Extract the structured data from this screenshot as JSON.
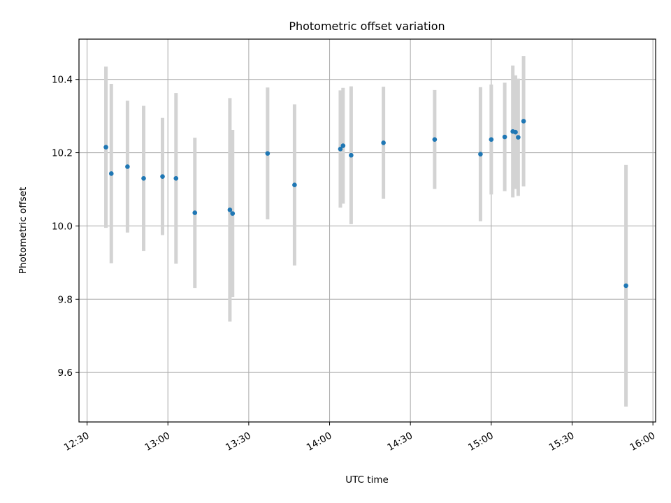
{
  "chart_data": {
    "type": "scatter",
    "title": "Photometric offset variation",
    "xlabel": "UTC time",
    "ylabel": "Photometric offset",
    "x_tick_labels": [
      "12:30",
      "13:00",
      "13:30",
      "14:00",
      "14:30",
      "15:00",
      "15:30",
      "16:00"
    ],
    "y_tick_labels": [
      "9.6",
      "9.8",
      "10.0",
      "10.2",
      "10.4"
    ],
    "xlim": [
      "12:27",
      "16:01"
    ],
    "ylim": [
      9.465,
      10.51
    ],
    "grid": true,
    "colors": {
      "point": "#1f77b4",
      "errorbar": "#d3d3d3",
      "grid": "#b0b0b0"
    },
    "points": [
      {
        "x": "12:37",
        "y": 10.215,
        "yerr": 0.22
      },
      {
        "x": "12:39",
        "y": 10.143,
        "yerr": 0.245
      },
      {
        "x": "12:45",
        "y": 10.162,
        "yerr": 0.18
      },
      {
        "x": "12:51",
        "y": 10.13,
        "yerr": 0.198
      },
      {
        "x": "12:58",
        "y": 10.135,
        "yerr": 0.16
      },
      {
        "x": "13:03",
        "y": 10.13,
        "yerr": 0.233
      },
      {
        "x": "13:10",
        "y": 10.036,
        "yerr": 0.205
      },
      {
        "x": "13:23",
        "y": 10.044,
        "yerr": 0.305
      },
      {
        "x": "13:24",
        "y": 10.034,
        "yerr": 0.228
      },
      {
        "x": "13:37",
        "y": 10.198,
        "yerr": 0.18
      },
      {
        "x": "13:47",
        "y": 10.112,
        "yerr": 0.22
      },
      {
        "x": "14:04",
        "y": 10.21,
        "yerr": 0.16
      },
      {
        "x": "14:05",
        "y": 10.219,
        "yerr": 0.158
      },
      {
        "x": "14:08",
        "y": 10.193,
        "yerr": 0.188
      },
      {
        "x": "14:20",
        "y": 10.227,
        "yerr": 0.153
      },
      {
        "x": "14:39",
        "y": 10.236,
        "yerr": 0.135
      },
      {
        "x": "14:56",
        "y": 10.196,
        "yerr": 0.183
      },
      {
        "x": "15:00",
        "y": 10.236,
        "yerr": 0.15
      },
      {
        "x": "15:05",
        "y": 10.243,
        "yerr": 0.148
      },
      {
        "x": "15:08",
        "y": 10.258,
        "yerr": 0.18
      },
      {
        "x": "15:09",
        "y": 10.256,
        "yerr": 0.155
      },
      {
        "x": "15:10",
        "y": 10.242,
        "yerr": 0.16
      },
      {
        "x": "15:12",
        "y": 10.286,
        "yerr": 0.178
      },
      {
        "x": "15:50",
        "y": 9.837,
        "yerr": 0.33
      }
    ]
  }
}
